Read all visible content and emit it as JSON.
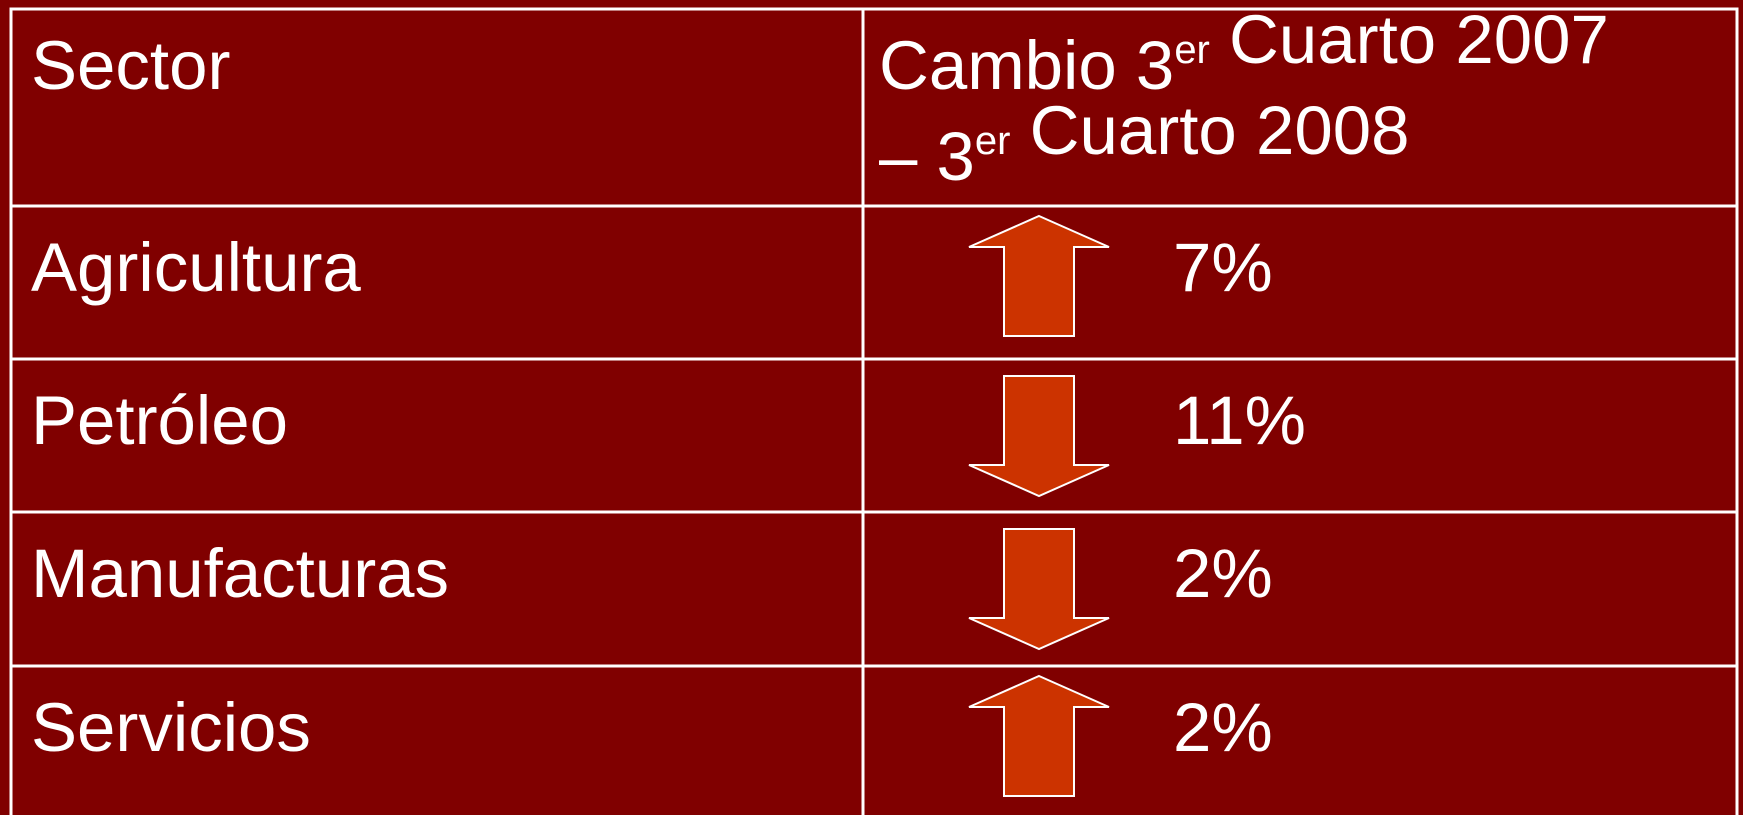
{
  "table": {
    "header": [
      "Sector",
      [
        [
          {
            "text": "Cambio 3"
          },
          {
            "sup": "er"
          },
          {
            "text": " Cuarto 2007"
          }
        ],
        [
          {
            "text": "– 3"
          },
          {
            "sup": "er"
          },
          {
            "text": " Cuarto 2008"
          }
        ]
      ]
    ],
    "rows": [
      [
        "Agricultura",
        "7%"
      ],
      [
        "Petróleo",
        "11%"
      ],
      [
        "Manufacturas",
        "2%"
      ],
      [
        "Servicios",
        "2%"
      ]
    ],
    "directions": [
      "up",
      "down",
      "down",
      "up"
    ]
  }
}
